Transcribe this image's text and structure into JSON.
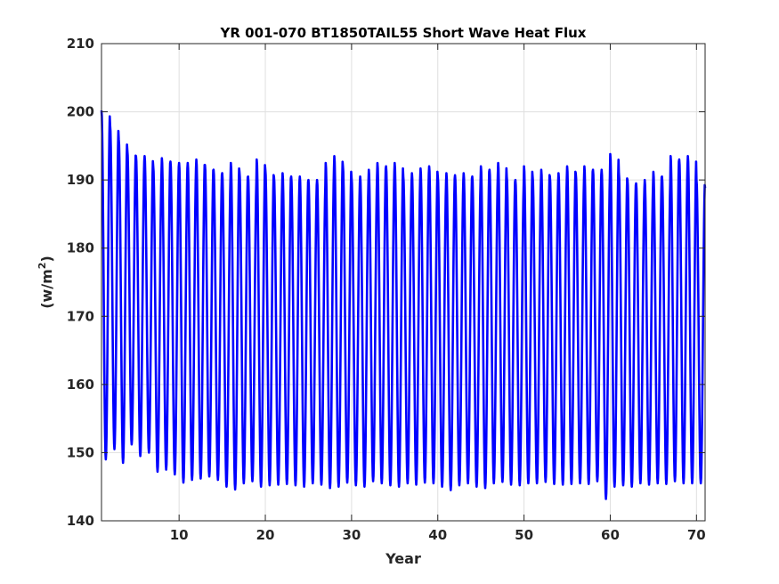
{
  "chart_data": {
    "type": "line",
    "title": "YR 001-070 BT1850TAIL55 Short Wave Heat Flux",
    "xlabel": "Year",
    "ylabel": "(w/m",
    "ylabel_sup": "2",
    "ylabel_end": ")",
    "xlim": [
      1,
      71
    ],
    "ylim": [
      140,
      210
    ],
    "xticks": [
      10,
      20,
      30,
      40,
      50,
      60,
      70
    ],
    "yticks": [
      140,
      150,
      160,
      170,
      180,
      190,
      200,
      210
    ],
    "grid": true,
    "line_color": "#0000ff",
    "series_note": "monthly values, one annual cycle per year",
    "series": [
      {
        "x_start": 1,
        "annual_max": [
          200.2,
          198.0,
          196.0,
          194.3,
          193.5,
          193.5,
          192.0,
          193.2,
          192.7,
          192.5,
          192.5,
          193.0,
          192.2,
          191.5,
          191.0,
          192.5,
          191.2,
          190.5,
          193.0,
          191.5,
          190.5,
          191.0,
          190.5,
          190.5,
          190.0,
          190.0,
          192.5,
          193.5,
          192.0,
          190.3,
          190.5,
          191.5,
          192.5,
          192.0,
          192.5,
          190.5,
          191.0,
          191.7,
          192.0,
          190.5,
          191.0,
          190.7,
          191.0,
          190.5,
          192.0,
          191.5,
          192.5,
          190.5,
          190.0,
          192.0,
          190.5,
          191.5,
          190.5,
          191.0,
          192.0,
          191.0,
          192.0,
          191.5,
          191.5,
          193.8,
          191.0,
          190.0,
          189.5,
          190.0,
          191.2,
          190.5,
          193.5,
          193.0,
          193.5,
          190.0,
          188.8
        ],
        "annual_min": [
          149.0,
          150.5,
          148.5,
          151.2,
          149.5,
          150.0,
          147.2,
          147.5,
          146.8,
          145.6,
          146.0,
          146.2,
          146.5,
          146.0,
          145.0,
          144.6,
          145.5,
          145.8,
          145.0,
          145.2,
          145.3,
          145.4,
          145.2,
          145.0,
          145.5,
          145.3,
          144.8,
          145.0,
          145.6,
          145.2,
          145.0,
          145.8,
          145.5,
          145.2,
          145.0,
          145.5,
          145.3,
          145.6,
          145.5,
          145.0,
          144.5,
          145.2,
          145.5,
          145.0,
          144.8,
          145.5,
          145.7,
          145.3,
          145.2,
          145.5,
          145.5,
          145.7,
          145.4,
          145.3,
          145.4,
          145.5,
          145.4,
          145.8,
          143.2,
          145.0,
          145.2,
          145.0,
          145.5,
          145.3,
          145.5,
          145.4,
          145.8,
          145.5,
          145.5,
          145.5,
          145.6
        ]
      }
    ]
  }
}
